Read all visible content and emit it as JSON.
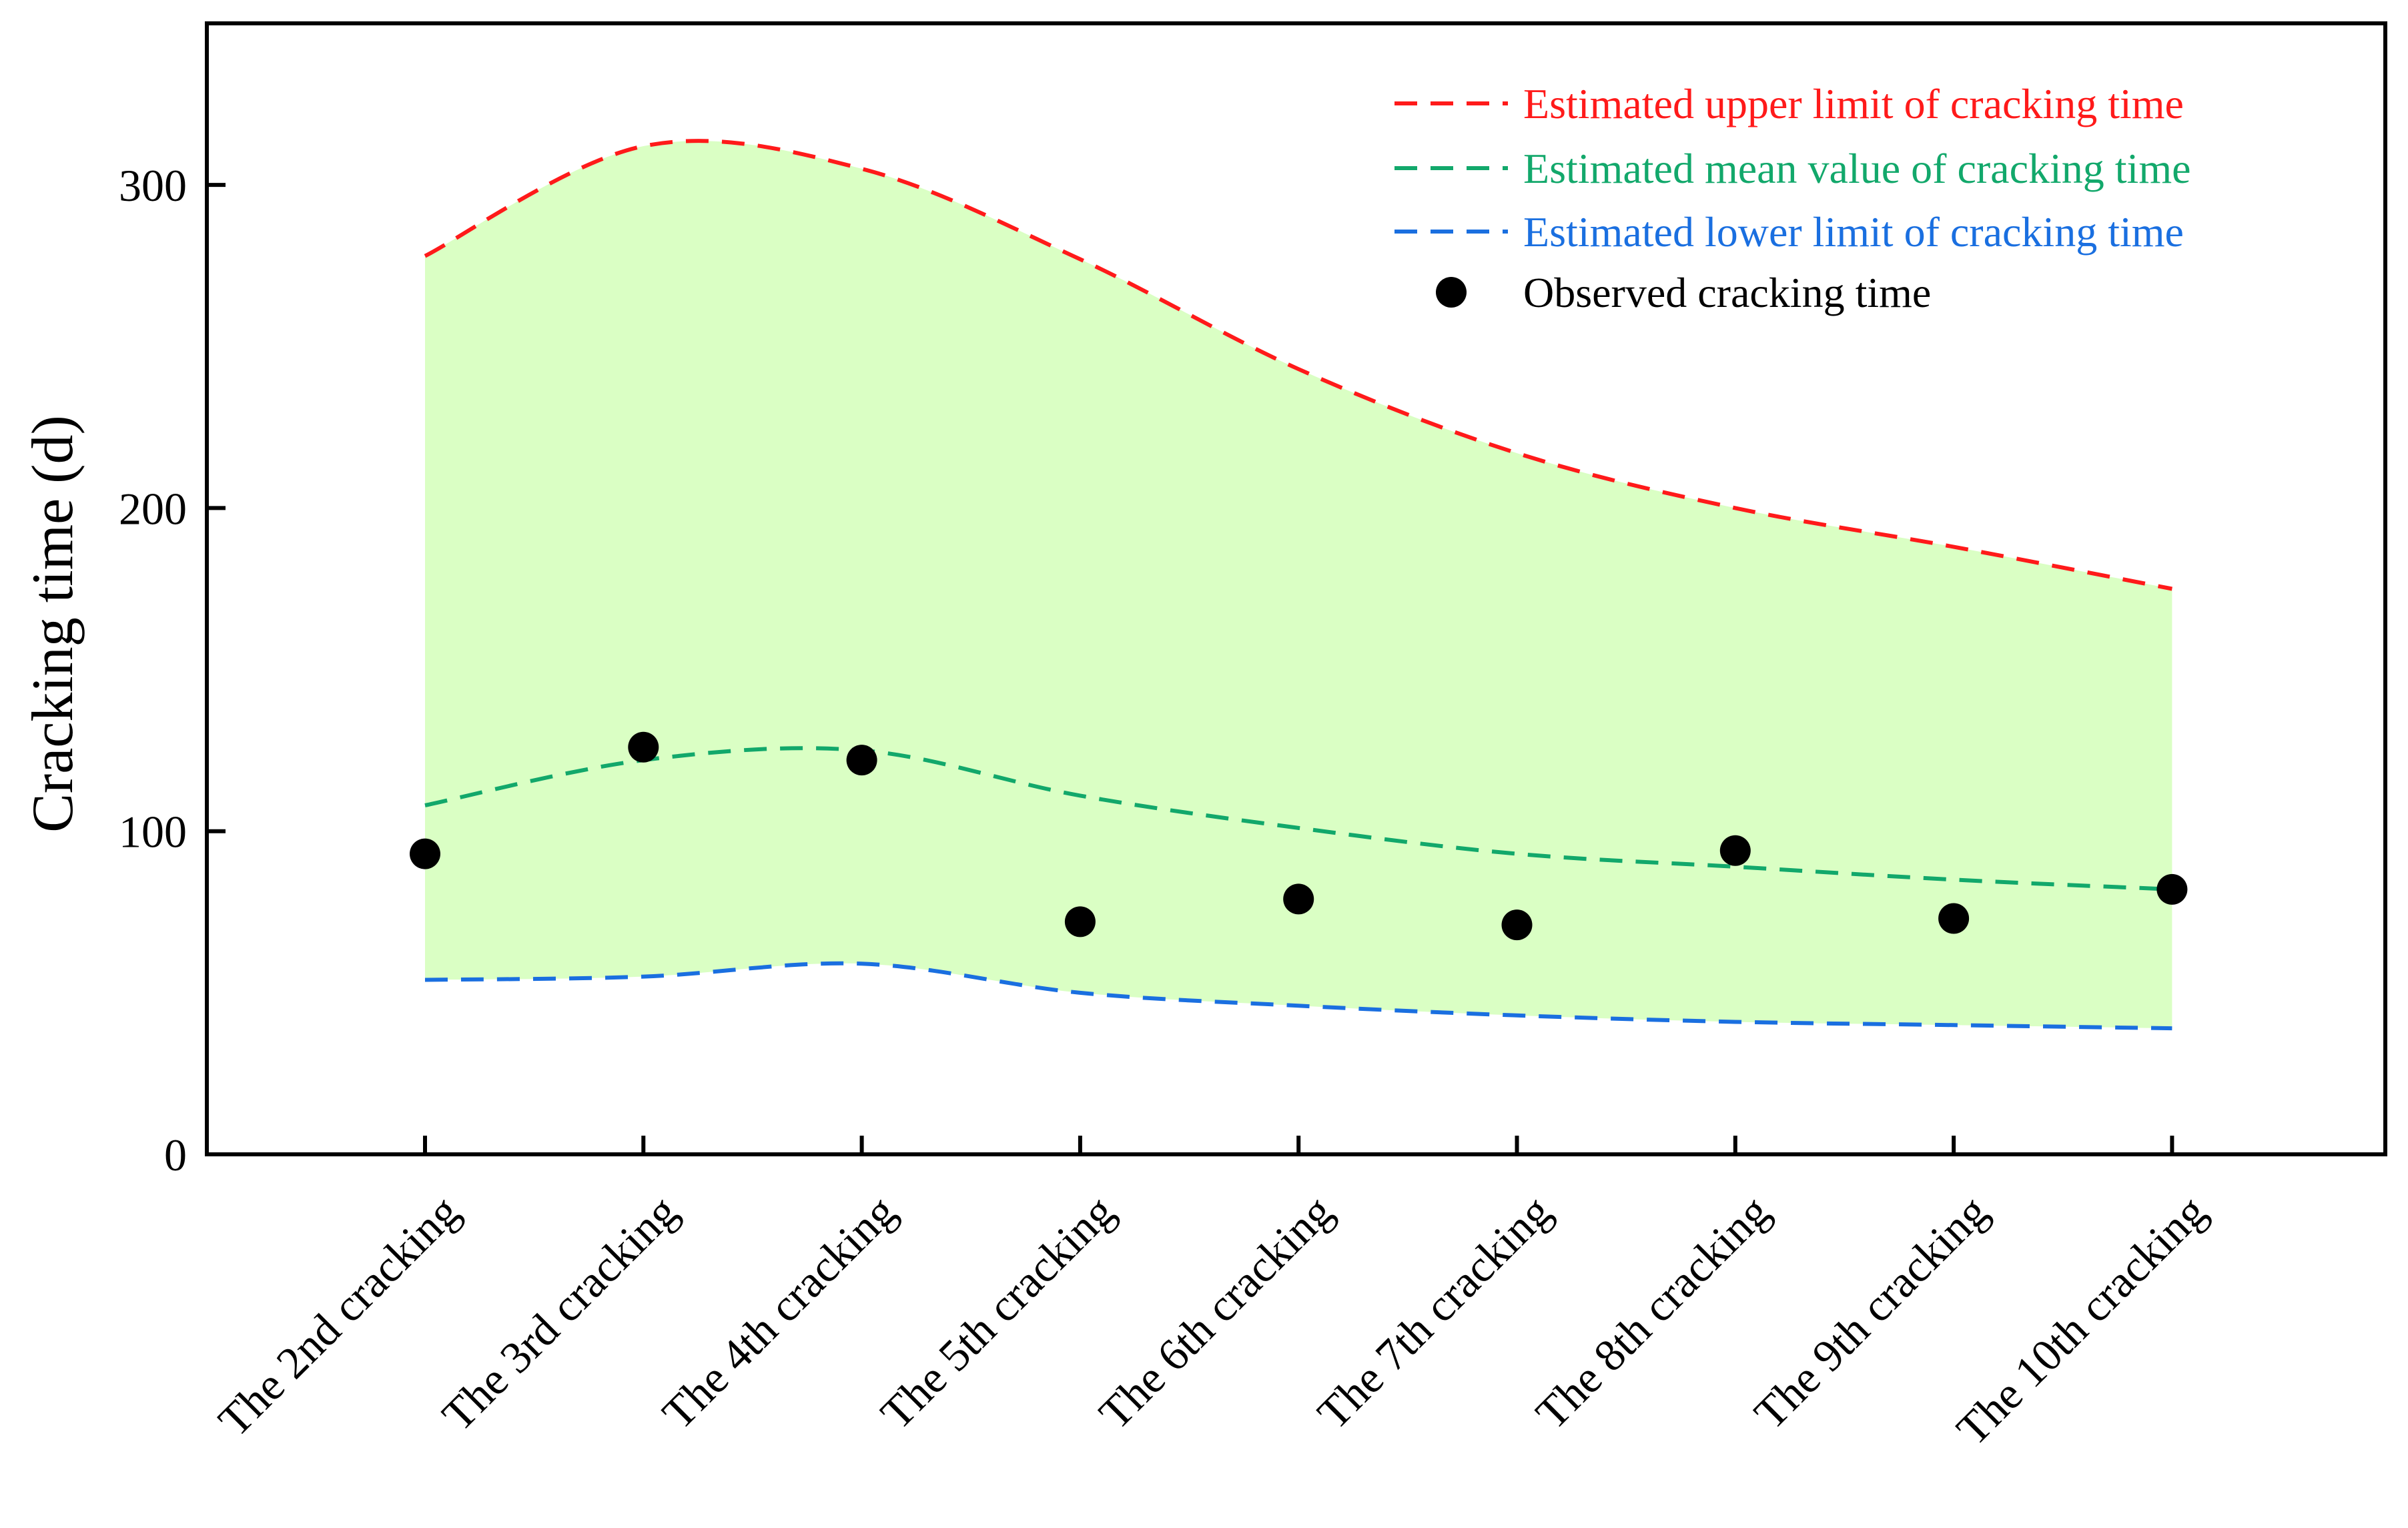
{
  "chart_data": {
    "type": "line",
    "title": "",
    "xlabel": "",
    "ylabel": "Cracking time (d)",
    "ylim": [
      0,
      350
    ],
    "yticks": [
      0,
      100,
      200,
      300
    ],
    "grid": false,
    "legend_position": "top-right",
    "categories": [
      "The 2nd cracking",
      "The 3rd cracking",
      "The 4th cracking",
      "The 5th cracking",
      "The 6th cracking",
      "The 7th cracking",
      "The 8th cracking",
      "The 9th cracking",
      "The 10th cracking"
    ],
    "band": {
      "description": "shaded range between estimated lower and upper limits",
      "color": "#daffc4"
    },
    "series": [
      {
        "name": "Estimated upper limit of cracking time",
        "kind": "dashed-line",
        "color": "#ff1a1a",
        "values": [
          278,
          312,
          305,
          277,
          243,
          217,
          200,
          188,
          175
        ]
      },
      {
        "name": "Estimated mean value of cracking time",
        "kind": "dashed-line",
        "color": "#12a86b",
        "values": [
          108,
          122,
          125,
          111,
          101,
          93,
          89,
          85,
          82
        ]
      },
      {
        "name": "Estimated lower limit of cracking time",
        "kind": "dashed-line",
        "color": "#1a6fe0",
        "values": [
          54,
          55,
          59,
          50,
          46,
          43,
          41,
          40,
          39
        ]
      },
      {
        "name": "Observed cracking time",
        "kind": "markers",
        "color": "#000000",
        "values": [
          93,
          126,
          122,
          72,
          79,
          71,
          94,
          73,
          82
        ]
      }
    ]
  }
}
